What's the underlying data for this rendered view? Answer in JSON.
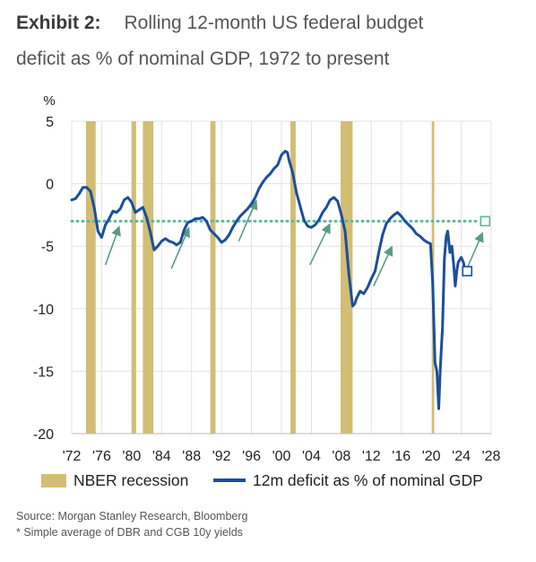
{
  "header": {
    "exhibit_label": "Exhibit 2:",
    "title_line1": "Rolling 12-month US federal budget",
    "title_line2": "deficit as % of nominal GDP, 1972 to present"
  },
  "footer": {
    "source": "Source: Morgan Stanley Research, Bloomberg",
    "note": "* Simple average of DBR and CGB 10y yields"
  },
  "colors": {
    "line": "#1a4f9c",
    "recession": "#d2bd74",
    "dotted": "#5fb89a",
    "arrow": "#5a9c84",
    "grid": "#e3e3e3"
  },
  "chart_data": {
    "type": "line",
    "title": "Rolling 12-month US federal budget deficit as % of nominal GDP, 1972 to present",
    "ylabel": "%",
    "xlim": [
      1972,
      2028
    ],
    "ylim": [
      -20,
      5
    ],
    "grid": true,
    "legend_position": "bottom",
    "x_ticks": [
      {
        "value": 1972,
        "label": "'72"
      },
      {
        "value": 1976,
        "label": "'76"
      },
      {
        "value": 1980,
        "label": "'80"
      },
      {
        "value": 1984,
        "label": "'84"
      },
      {
        "value": 1988,
        "label": "'88"
      },
      {
        "value": 1992,
        "label": "'92"
      },
      {
        "value": 1996,
        "label": "'96"
      },
      {
        "value": 2000,
        "label": "'00"
      },
      {
        "value": 2004,
        "label": "'04"
      },
      {
        "value": 2008,
        "label": "'08"
      },
      {
        "value": 2012,
        "label": "'12"
      },
      {
        "value": 2016,
        "label": "'16"
      },
      {
        "value": 2020,
        "label": "'20"
      },
      {
        "value": 2024,
        "label": "'24"
      },
      {
        "value": 2028,
        "label": "'28"
      }
    ],
    "y_ticks": [
      {
        "value": 5,
        "label": "5"
      },
      {
        "value": 0,
        "label": "0"
      },
      {
        "value": -5,
        "label": "-5"
      },
      {
        "value": -10,
        "label": "-10"
      },
      {
        "value": -15,
        "label": "-15"
      },
      {
        "value": -20,
        "label": "-20"
      }
    ],
    "recessions": [
      [
        1973.9,
        1975.2
      ],
      [
        1980.0,
        1980.6
      ],
      [
        1981.5,
        1982.9
      ],
      [
        1990.5,
        1991.2
      ],
      [
        2001.2,
        2001.9
      ],
      [
        2007.9,
        2009.5
      ],
      [
        2020.1,
        2020.4
      ]
    ],
    "series": [
      {
        "name": "12m deficit as % of nominal GDP",
        "points": [
          [
            1972.0,
            -1.3
          ],
          [
            1972.5,
            -1.2
          ],
          [
            1973.0,
            -0.8
          ],
          [
            1973.5,
            -0.3
          ],
          [
            1974.0,
            -0.3
          ],
          [
            1974.5,
            -0.6
          ],
          [
            1975.0,
            -1.9
          ],
          [
            1975.5,
            -3.8
          ],
          [
            1976.0,
            -4.3
          ],
          [
            1976.5,
            -3.3
          ],
          [
            1977.0,
            -2.8
          ],
          [
            1977.5,
            -2.2
          ],
          [
            1978.0,
            -2.3
          ],
          [
            1978.5,
            -2.0
          ],
          [
            1979.0,
            -1.3
          ],
          [
            1979.5,
            -1.1
          ],
          [
            1980.0,
            -1.5
          ],
          [
            1980.5,
            -2.3
          ],
          [
            1981.0,
            -2.1
          ],
          [
            1981.5,
            -1.9
          ],
          [
            1982.0,
            -2.7
          ],
          [
            1982.5,
            -3.9
          ],
          [
            1983.0,
            -5.3
          ],
          [
            1983.5,
            -5.0
          ],
          [
            1984.0,
            -4.6
          ],
          [
            1984.5,
            -4.4
          ],
          [
            1985.0,
            -4.6
          ],
          [
            1985.5,
            -4.7
          ],
          [
            1986.0,
            -4.9
          ],
          [
            1986.5,
            -4.7
          ],
          [
            1987.0,
            -3.7
          ],
          [
            1987.5,
            -3.1
          ],
          [
            1988.0,
            -3.0
          ],
          [
            1988.5,
            -2.8
          ],
          [
            1989.0,
            -2.8
          ],
          [
            1989.5,
            -2.7
          ],
          [
            1990.0,
            -3.0
          ],
          [
            1990.5,
            -3.7
          ],
          [
            1991.0,
            -4.0
          ],
          [
            1991.5,
            -4.3
          ],
          [
            1992.0,
            -4.7
          ],
          [
            1992.5,
            -4.5
          ],
          [
            1993.0,
            -4.1
          ],
          [
            1993.5,
            -3.5
          ],
          [
            1994.0,
            -3.0
          ],
          [
            1994.5,
            -2.6
          ],
          [
            1995.0,
            -2.3
          ],
          [
            1995.5,
            -2.0
          ],
          [
            1996.0,
            -1.6
          ],
          [
            1996.5,
            -1.1
          ],
          [
            1997.0,
            -0.4
          ],
          [
            1997.5,
            0.1
          ],
          [
            1998.0,
            0.5
          ],
          [
            1998.5,
            0.8
          ],
          [
            1999.0,
            1.2
          ],
          [
            1999.5,
            1.5
          ],
          [
            2000.0,
            2.3
          ],
          [
            2000.5,
            2.6
          ],
          [
            2000.8,
            2.5
          ],
          [
            2001.0,
            1.9
          ],
          [
            2001.5,
            0.9
          ],
          [
            2002.0,
            -0.7
          ],
          [
            2002.5,
            -1.8
          ],
          [
            2003.0,
            -2.9
          ],
          [
            2003.5,
            -3.4
          ],
          [
            2004.0,
            -3.5
          ],
          [
            2004.5,
            -3.3
          ],
          [
            2005.0,
            -2.9
          ],
          [
            2005.5,
            -2.3
          ],
          [
            2006.0,
            -1.9
          ],
          [
            2006.5,
            -1.3
          ],
          [
            2007.0,
            -1.1
          ],
          [
            2007.5,
            -1.4
          ],
          [
            2008.0,
            -2.5
          ],
          [
            2008.5,
            -3.8
          ],
          [
            2009.0,
            -7.2
          ],
          [
            2009.5,
            -9.8
          ],
          [
            2009.8,
            -9.6
          ],
          [
            2010.0,
            -9.2
          ],
          [
            2010.5,
            -8.6
          ],
          [
            2011.0,
            -8.8
          ],
          [
            2011.5,
            -8.3
          ],
          [
            2012.0,
            -7.6
          ],
          [
            2012.5,
            -7.0
          ],
          [
            2013.0,
            -5.5
          ],
          [
            2013.5,
            -4.1
          ],
          [
            2014.0,
            -3.2
          ],
          [
            2014.5,
            -2.8
          ],
          [
            2015.0,
            -2.5
          ],
          [
            2015.5,
            -2.3
          ],
          [
            2016.0,
            -2.6
          ],
          [
            2016.5,
            -3.0
          ],
          [
            2017.0,
            -3.3
          ],
          [
            2017.5,
            -3.6
          ],
          [
            2018.0,
            -4.0
          ],
          [
            2018.5,
            -4.2
          ],
          [
            2019.0,
            -4.5
          ],
          [
            2019.5,
            -4.7
          ],
          [
            2019.9,
            -4.8
          ],
          [
            2020.2,
            -8.0
          ],
          [
            2020.5,
            -14.3
          ],
          [
            2020.75,
            -15.0
          ],
          [
            2021.0,
            -18.0
          ],
          [
            2021.2,
            -14.8
          ],
          [
            2021.5,
            -11.5
          ],
          [
            2021.75,
            -6.0
          ],
          [
            2022.0,
            -4.2
          ],
          [
            2022.2,
            -3.8
          ],
          [
            2022.5,
            -5.5
          ],
          [
            2022.75,
            -5.0
          ],
          [
            2023.0,
            -6.5
          ],
          [
            2023.2,
            -8.2
          ],
          [
            2023.4,
            -7.0
          ],
          [
            2023.6,
            -6.3
          ],
          [
            2024.0,
            -5.9
          ],
          [
            2024.3,
            -6.3
          ],
          [
            2024.5,
            -7.0
          ],
          [
            2024.7,
            -6.8
          ]
        ]
      }
    ],
    "annotations": {
      "dotted_reference": {
        "value": -3.0,
        "from": 1972,
        "to": 2027.2
      },
      "marker_projected": {
        "x": 2027.2,
        "y": -3.0
      },
      "marker_current": {
        "x": 2024.8,
        "y": -7.0
      },
      "arrows": [
        [
          1976.5,
          -6.5,
          1978.3,
          -3.5
        ],
        [
          1985.3,
          -6.8,
          1987.6,
          -3.6
        ],
        [
          1994.3,
          -4.6,
          1996.6,
          -1.4
        ],
        [
          2003.8,
          -6.5,
          2006.4,
          -3.3
        ],
        [
          2012.3,
          -8.2,
          2014.7,
          -5.1
        ],
        [
          2024.4,
          -7.3,
          2026.8,
          -4.0
        ]
      ]
    },
    "legend": {
      "recession_label": "NBER recession",
      "line_label": "12m deficit as % of nominal GDP"
    }
  }
}
